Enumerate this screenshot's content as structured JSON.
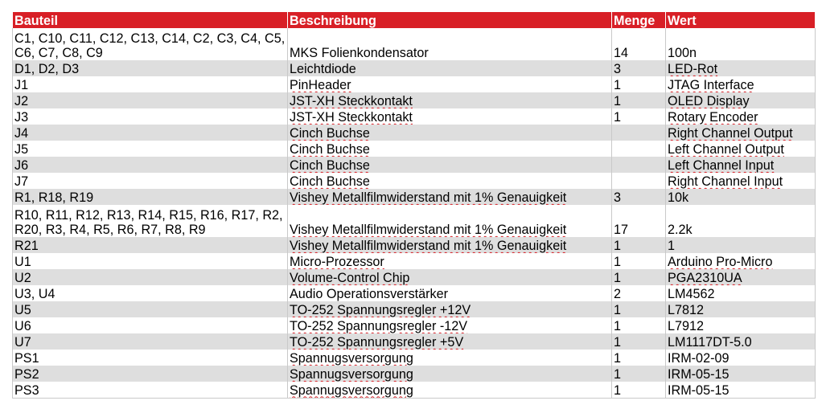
{
  "headers": [
    "Bauteil",
    "Beschreibung",
    "Menge",
    "Wert"
  ],
  "rows": [
    {
      "bauteil": "C1, C10, C11, C12, C13, C14, C2, C3, C4, C5, C6, C7, C8, C9",
      "beschreibung": "MKS Folienkondensator",
      "menge": "14",
      "wert": "100n"
    },
    {
      "bauteil": "D1, D2, D3",
      "beschreibung": "Leichtdiode",
      "menge": "3",
      "wert": "LED-Rot"
    },
    {
      "bauteil": "J1",
      "beschreibung": "PinHeader",
      "menge": "1",
      "wert": "JTAG Interface"
    },
    {
      "bauteil": "J2",
      "beschreibung": "JST-XH Steckkontakt",
      "menge": "1",
      "wert": "OLED Display"
    },
    {
      "bauteil": "J3",
      "beschreibung": "JST-XH Steckkontakt",
      "menge": "1",
      "wert": "Rotary Encoder"
    },
    {
      "bauteil": "J4",
      "beschreibung": "Cinch Buchse",
      "menge": "",
      "wert": "Right Channel Output"
    },
    {
      "bauteil": "J5",
      "beschreibung": "Cinch Buchse",
      "menge": "",
      "wert": "Left Channel Output"
    },
    {
      "bauteil": "J6",
      "beschreibung": "Cinch Buchse",
      "menge": "",
      "wert": "Left Channel Input"
    },
    {
      "bauteil": "J7",
      "beschreibung": "Cinch Buchse",
      "menge": "",
      "wert": "Right Channel Input"
    },
    {
      "bauteil": "R1, R18, R19",
      "beschreibung": "Vishey Metallfilmwiderstand mit 1% Genauigkeit",
      "menge": "3",
      "wert": "10k"
    },
    {
      "bauteil": "R10, R11, R12, R13, R14, R15, R16, R17, R2, R20, R3, R4, R5, R6, R7, R8, R9",
      "beschreibung": "Vishey Metallfilmwiderstand mit 1% Genauigkeit",
      "menge": "17",
      "wert": "2.2k"
    },
    {
      "bauteil": "R21",
      "beschreibung": "Vishey Metallfilmwiderstand mit 1% Genauigkeit",
      "menge": "1",
      "wert": "1"
    },
    {
      "bauteil": "U1",
      "beschreibung": "Micro-Prozessor",
      "menge": "1",
      "wert": "Arduino Pro-Micro"
    },
    {
      "bauteil": "U2",
      "beschreibung": "Volume-Control Chip",
      "menge": "1",
      "wert": "PGA2310UA"
    },
    {
      "bauteil": "U3, U4",
      "beschreibung": "Audio Operationsverstärker",
      "menge": "2",
      "wert": "LM4562"
    },
    {
      "bauteil": "U5",
      "beschreibung": "TO-252 Spannungsregler +12V",
      "menge": "1",
      "wert": "L7812"
    },
    {
      "bauteil": "U6",
      "beschreibung": "TO-252 Spannungsregler -12V",
      "menge": "1",
      "wert": "L7912"
    },
    {
      "bauteil": "U7",
      "beschreibung": "TO-252 Spannungsregler +5V",
      "menge": "1",
      "wert": "LM1117DT-5.0"
    },
    {
      "bauteil": "PS1",
      "beschreibung": "Spannugsversorgung",
      "menge": "1",
      "wert": "IRM-02-09"
    },
    {
      "bauteil": "PS2",
      "beschreibung": "Spannugsversorgung",
      "menge": "1",
      "wert": "IRM-05-15"
    },
    {
      "bauteil": "PS3",
      "beschreibung": "Spannugsversorgung",
      "menge": "1",
      "wert": "IRM-05-15"
    }
  ]
}
